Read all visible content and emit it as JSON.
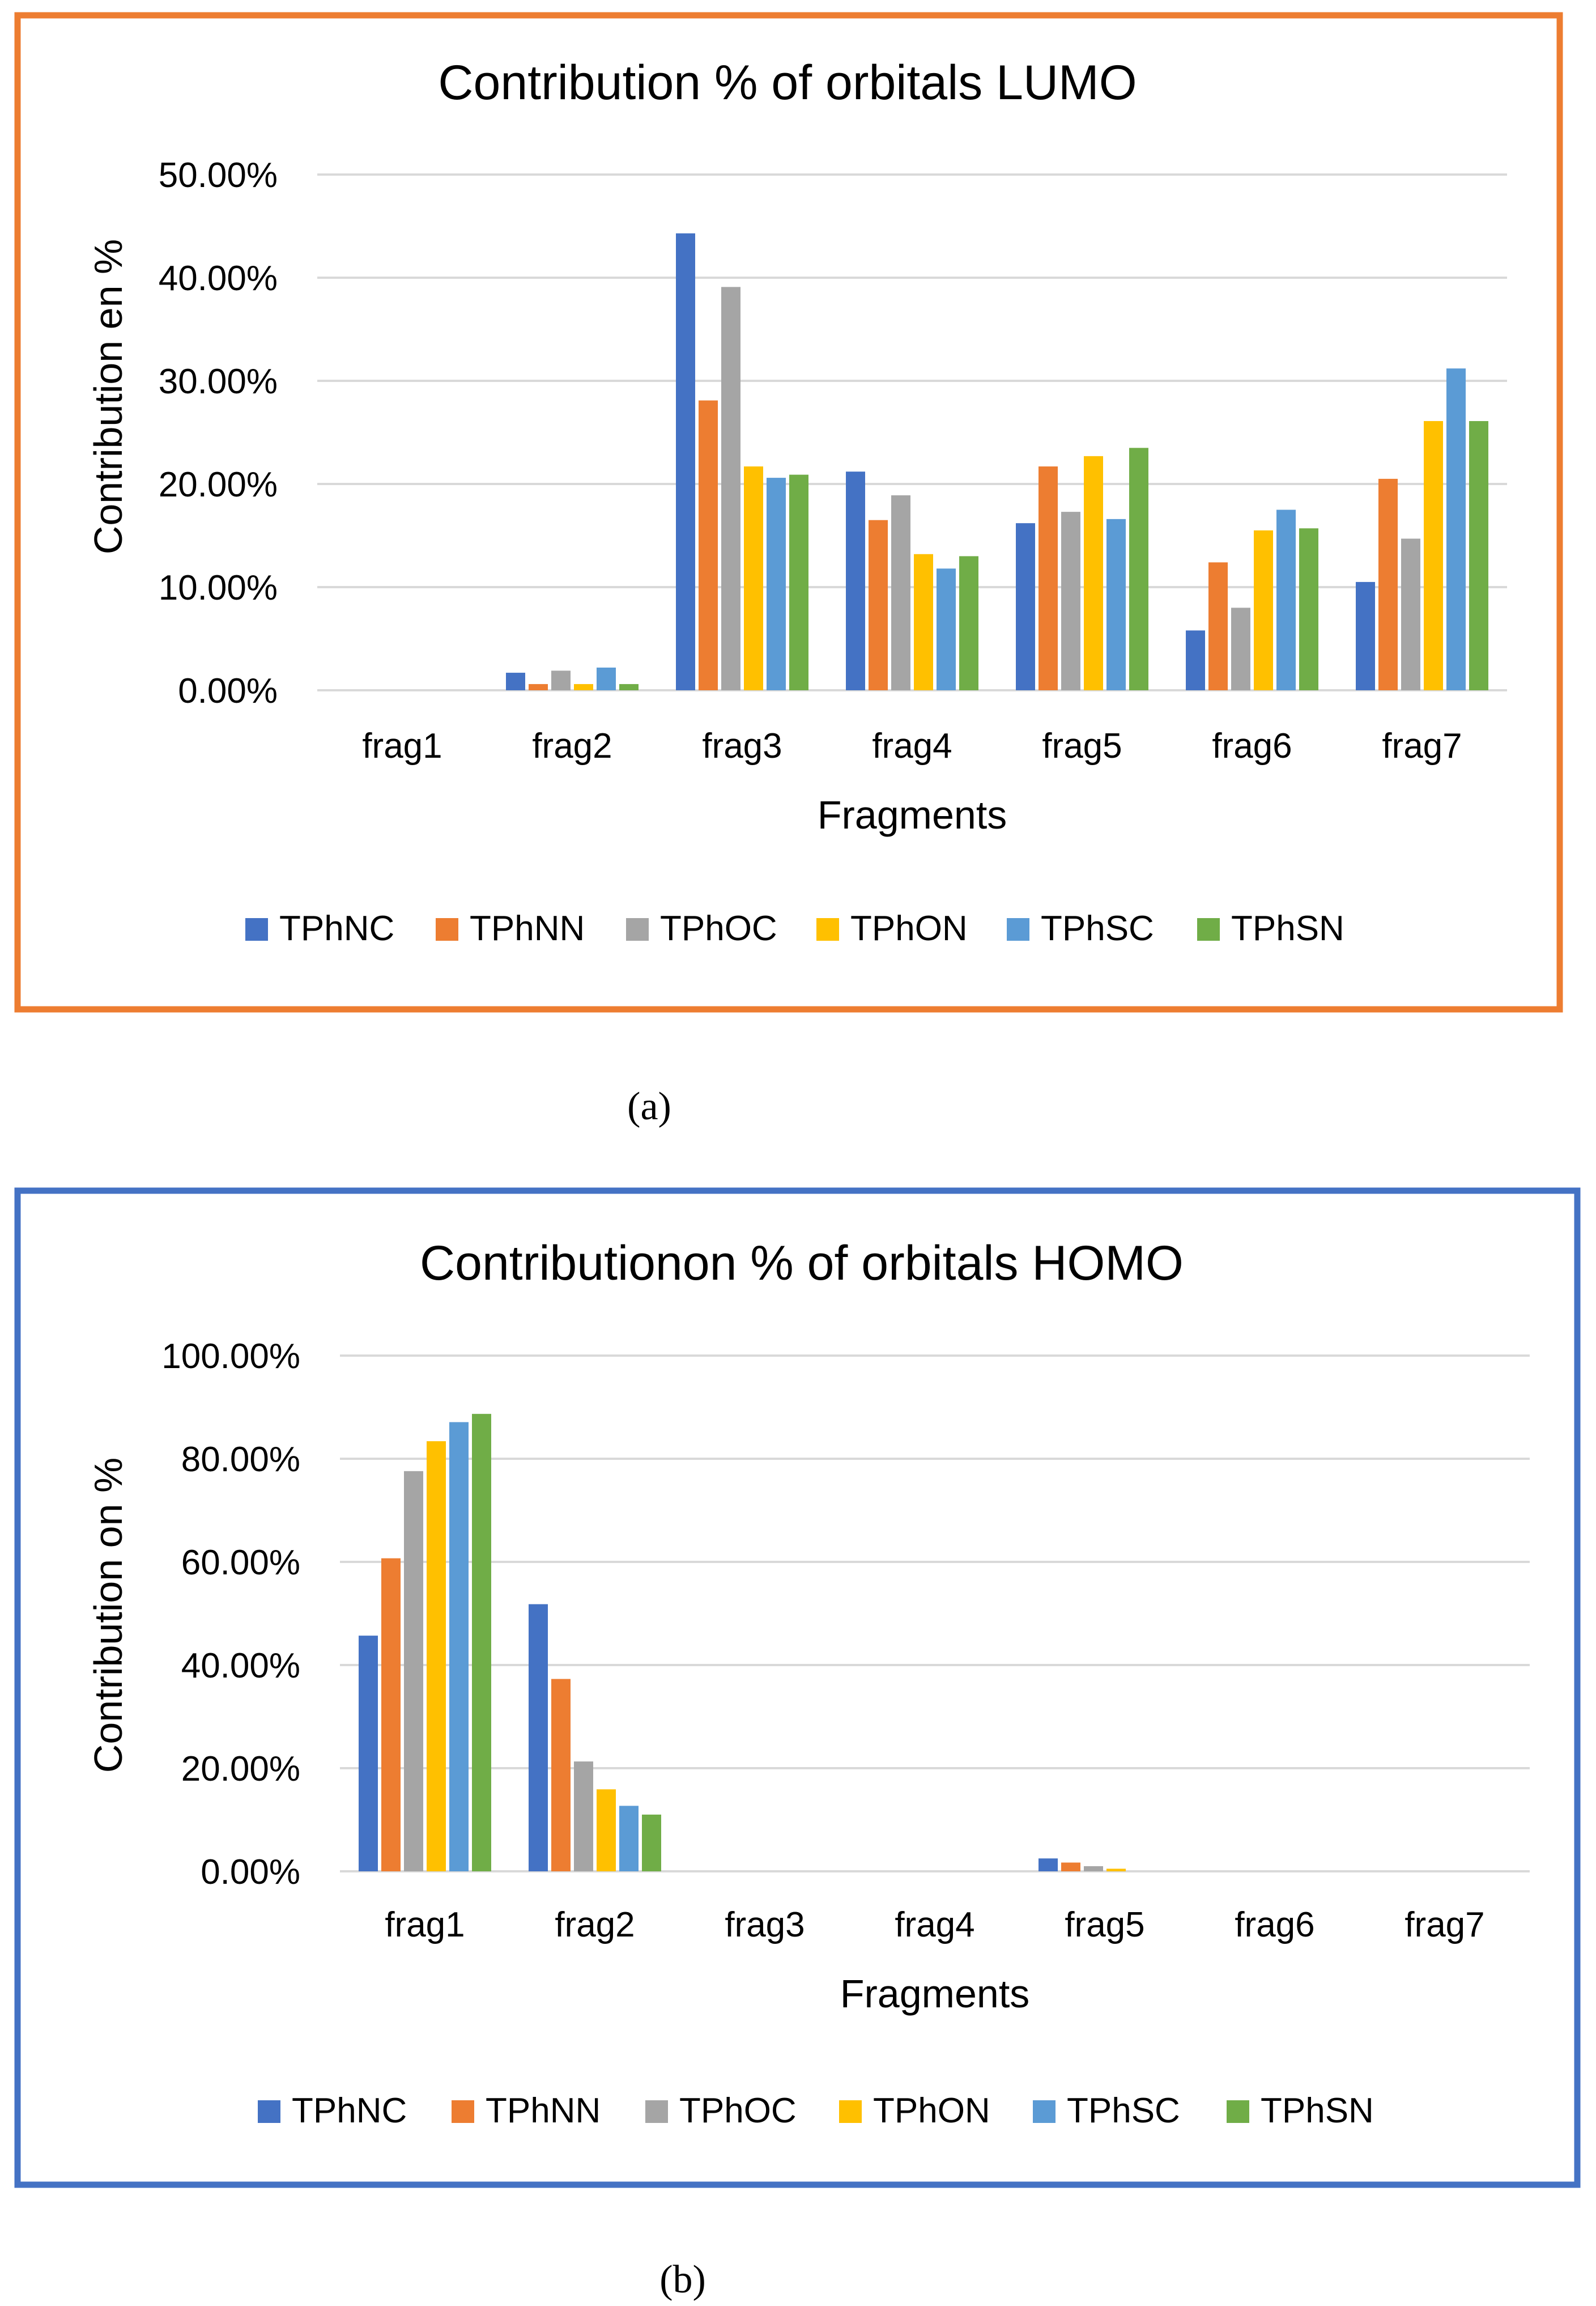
{
  "chart_data": [
    {
      "type": "bar",
      "title": "Contribution % of orbitals LUMO",
      "xlabel": "Fragments",
      "ylabel": "Contribution en %",
      "ylim": [
        0,
        0.5
      ],
      "yticks": [
        "0.00%",
        "10.00%",
        "20.00%",
        "30.00%",
        "40.00%",
        "50.00%"
      ],
      "grid": true,
      "legend": "bottom",
      "frame_color": "#ED7D31",
      "caption": "(a)",
      "categories": [
        "frag1",
        "frag2",
        "frag3",
        "frag4",
        "frag5",
        "frag6",
        "frag7"
      ],
      "series": [
        {
          "name": "TPhNC",
          "color": "#4472C4",
          "values": [
            0,
            0.017,
            0.443,
            0.212,
            0.162,
            0.058,
            0.105
          ]
        },
        {
          "name": "TPhNN",
          "color": "#ED7D31",
          "values": [
            0,
            0.006,
            0.281,
            0.165,
            0.217,
            0.124,
            0.205
          ]
        },
        {
          "name": "TPhOC",
          "color": "#A5A5A5",
          "values": [
            0,
            0.019,
            0.391,
            0.189,
            0.173,
            0.08,
            0.147
          ]
        },
        {
          "name": "TPhON",
          "color": "#FFC000",
          "values": [
            0,
            0.006,
            0.217,
            0.132,
            0.227,
            0.155,
            0.261
          ]
        },
        {
          "name": "TPhSC",
          "color": "#5B9BD5",
          "values": [
            0,
            0.022,
            0.206,
            0.118,
            0.166,
            0.175,
            0.312
          ]
        },
        {
          "name": "TPhSN",
          "color": "#70AD47",
          "values": [
            0,
            0.006,
            0.209,
            0.13,
            0.235,
            0.157,
            0.261
          ]
        }
      ]
    },
    {
      "type": "bar",
      "title": "Contributionon % of orbitals HOMO",
      "xlabel": "Fragments",
      "ylabel": "Contribution on %",
      "ylim": [
        0,
        1.0
      ],
      "yticks": [
        "0.00%",
        "20.00%",
        "40.00%",
        "60.00%",
        "80.00%",
        "100.00%"
      ],
      "grid": true,
      "legend": "bottom",
      "frame_color": "#4472C4",
      "caption": "(b)",
      "categories": [
        "frag1",
        "frag2",
        "frag3",
        "frag4",
        "frag5",
        "frag6",
        "frag7"
      ],
      "series": [
        {
          "name": "TPhNC",
          "color": "#4472C4",
          "values": [
            0.457,
            0.518,
            0,
            0,
            0.025,
            0,
            0
          ]
        },
        {
          "name": "TPhNN",
          "color": "#ED7D31",
          "values": [
            0.607,
            0.373,
            0,
            0,
            0.017,
            0,
            0
          ]
        },
        {
          "name": "TPhOC",
          "color": "#A5A5A5",
          "values": [
            0.776,
            0.213,
            0,
            0,
            0.01,
            0,
            0
          ]
        },
        {
          "name": "TPhON",
          "color": "#FFC000",
          "values": [
            0.834,
            0.159,
            0,
            0,
            0.005,
            0,
            0
          ]
        },
        {
          "name": "TPhSC",
          "color": "#5B9BD5",
          "values": [
            0.871,
            0.127,
            0,
            0,
            0,
            0,
            0
          ]
        },
        {
          "name": "TPhSN",
          "color": "#70AD47",
          "values": [
            0.887,
            0.11,
            0,
            0,
            0,
            0,
            0
          ]
        }
      ]
    }
  ]
}
